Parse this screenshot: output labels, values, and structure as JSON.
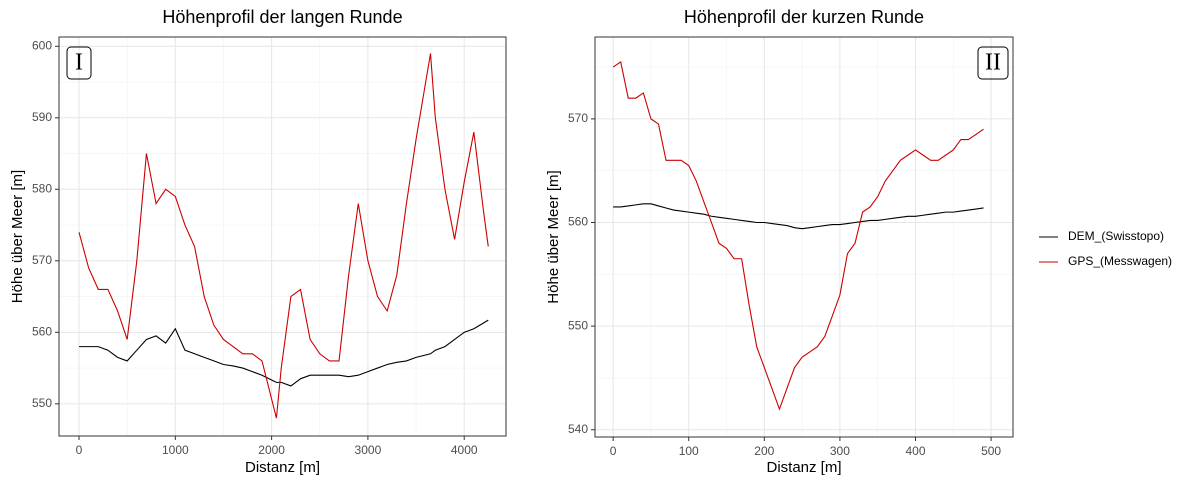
{
  "chart_data": [
    {
      "type": "line",
      "title": "Höhenprofil der langen Runde",
      "annotation": "I",
      "xlabel": "Distanz [m]",
      "ylabel": "Höhe über Meer [m]",
      "x": [
        0,
        100,
        200,
        300,
        400,
        500,
        600,
        700,
        800,
        900,
        1000,
        1100,
        1200,
        1300,
        1400,
        1500,
        1600,
        1700,
        1800,
        1900,
        2050,
        2100,
        2200,
        2300,
        2400,
        2500,
        2600,
        2700,
        2800,
        2900,
        3000,
        3100,
        3200,
        3300,
        3400,
        3500,
        3650,
        3700,
        3800,
        3900,
        4000,
        4100,
        4200,
        4250
      ],
      "series": [
        {
          "name": "DEM_(Swisstopo)",
          "color": "#000000",
          "values": [
            558,
            558,
            558,
            557.5,
            556.5,
            556,
            557.5,
            559,
            559.5,
            558.5,
            560.5,
            557.5,
            557,
            556.5,
            556,
            555.5,
            555.3,
            555,
            554.5,
            554,
            553,
            553,
            552.5,
            553.5,
            554,
            554,
            554,
            554,
            553.8,
            554,
            554.5,
            555,
            555.5,
            555.8,
            556,
            556.5,
            557,
            557.5,
            558,
            559,
            560,
            560.5,
            561.3,
            561.7
          ]
        },
        {
          "name": "GPS_(Messwagen)",
          "color": "#cc0000",
          "values": [
            574,
            569,
            566,
            566,
            563,
            559,
            570,
            585,
            578,
            580,
            579,
            575,
            572,
            565,
            561,
            559,
            558,
            557,
            557,
            556,
            548,
            555,
            565,
            566,
            559,
            557,
            556,
            556,
            568,
            578,
            570,
            565,
            563,
            568,
            578,
            587,
            599,
            590,
            580,
            573,
            581,
            588,
            577,
            572
          ]
        }
      ],
      "xlim": [
        -208,
        4434
      ],
      "ylim": [
        545.5,
        601.3
      ],
      "xticks": [
        0,
        1000,
        2000,
        3000,
        4000
      ],
      "yticks": [
        550,
        560,
        570,
        580,
        590,
        600
      ],
      "grid": true,
      "legend": "right"
    },
    {
      "type": "line",
      "title": "Höhenprofil der kurzen Runde",
      "annotation": "II",
      "xlabel": "Distanz [m]",
      "ylabel": "Höhe über Meer [m]",
      "x": [
        0,
        10,
        20,
        30,
        40,
        50,
        60,
        70,
        80,
        90,
        100,
        110,
        120,
        130,
        140,
        150,
        160,
        170,
        180,
        190,
        200,
        210,
        220,
        230,
        240,
        250,
        260,
        270,
        280,
        290,
        300,
        310,
        320,
        330,
        340,
        350,
        360,
        370,
        380,
        390,
        400,
        410,
        420,
        430,
        440,
        450,
        460,
        470,
        480,
        490
      ],
      "series": [
        {
          "color": "#000000",
          "values": [
            561.5,
            561.5,
            561.6,
            561.7,
            561.8,
            561.8,
            561.6,
            561.4,
            561.2,
            561.1,
            561,
            560.9,
            560.8,
            560.6,
            560.5,
            560.4,
            560.3,
            560.2,
            560.1,
            560,
            560,
            559.9,
            559.8,
            559.7,
            559.5,
            559.4,
            559.5,
            559.6,
            559.7,
            559.8,
            559.8,
            559.9,
            560,
            560.1,
            560.2,
            560.2,
            560.3,
            560.4,
            560.5,
            560.6,
            560.6,
            560.7,
            560.8,
            560.9,
            561,
            561,
            561.1,
            561.2,
            561.3,
            561.4
          ]
        },
        {
          "color": "#cc0000",
          "values": [
            575,
            575.5,
            572,
            572,
            572.5,
            570,
            569.5,
            566,
            566,
            566,
            565.5,
            564,
            562,
            560,
            558,
            557.5,
            556.5,
            556.5,
            552,
            548,
            546,
            544,
            542,
            544,
            546,
            547,
            547.5,
            548,
            549,
            551,
            553,
            557,
            558,
            561,
            561.5,
            562.5,
            564,
            565,
            566,
            566.5,
            567,
            566.5,
            566,
            566,
            566.5,
            567,
            568,
            568,
            568.5,
            569
          ]
        }
      ],
      "xlim": [
        -24,
        529
      ],
      "ylim": [
        539.3,
        577.9
      ],
      "xticks": [
        0,
        100,
        200,
        300,
        400,
        500
      ],
      "yticks": [
        540,
        550,
        560,
        570
      ],
      "grid": true
    }
  ]
}
